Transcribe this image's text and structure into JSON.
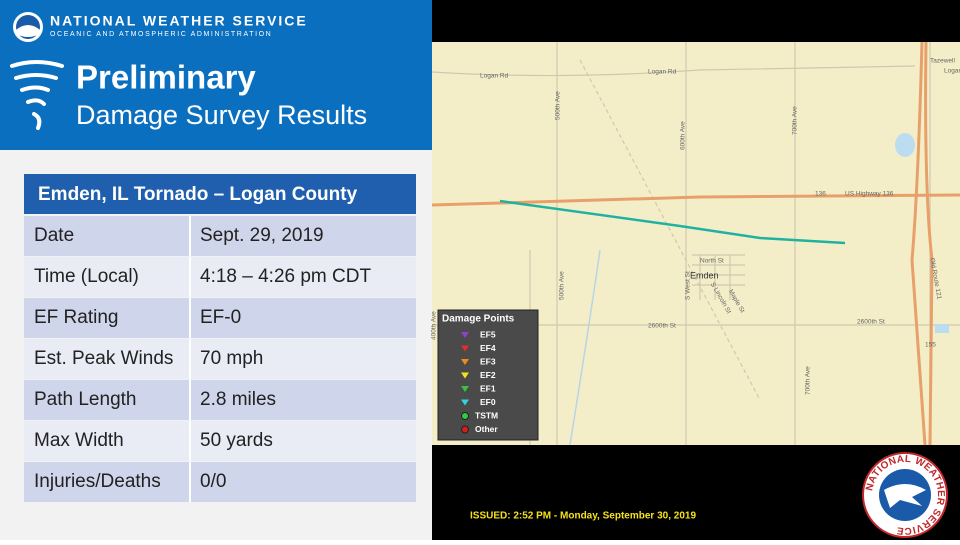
{
  "header": {
    "org": "NATIONAL WEATHER SERVICE",
    "suborg": "OCEANIC AND ATMOSPHERIC ADMINISTRATION",
    "title": "Preliminary",
    "subtitle": "Damage Survey Results"
  },
  "table": {
    "title": "Emden, IL Tornado – Logan County",
    "rows": [
      [
        "Date",
        "Sept. 29, 2019"
      ],
      [
        "Time (Local)",
        "4:18 – 4:26 pm CDT"
      ],
      [
        "EF Rating",
        "EF-0"
      ],
      [
        "Est. Peak Winds",
        "70 mph"
      ],
      [
        "Path Length",
        "2.8 miles"
      ],
      [
        "Max Width",
        "50 yards"
      ],
      [
        "Injuries/Deaths",
        " 0/0"
      ]
    ]
  },
  "map": {
    "labels": [
      "Logan Rd",
      "Logan Rd",
      "500th Ave",
      "600th Ave",
      "700th Ave",
      "US Highway 136",
      "136",
      "North St",
      "Emden",
      "S West St",
      "S Lincoln St",
      "Maple St",
      "2600th St",
      "2600th St",
      "500th Ave",
      "475th Ave",
      "400th Ave",
      "700th Ave",
      "Old Route 121",
      "Tazewell",
      "Logan",
      "155"
    ],
    "legend": {
      "title": "Damage Points",
      "items": [
        {
          "label": "EF5",
          "color": "#8e44c8",
          "shape": "triangle"
        },
        {
          "label": "EF4",
          "color": "#e0302c",
          "shape": "triangle"
        },
        {
          "label": "EF3",
          "color": "#f08a1c",
          "shape": "triangle"
        },
        {
          "label": "EF2",
          "color": "#f5e21a",
          "shape": "triangle"
        },
        {
          "label": "EF1",
          "color": "#3fbf3f",
          "shape": "triangle"
        },
        {
          "label": "EF0",
          "color": "#35d0e0",
          "shape": "triangle"
        },
        {
          "label": "TSTM",
          "color": "#2ecc40",
          "shape": "circle"
        },
        {
          "label": "Other",
          "color": "#d0201c",
          "shape": "circle"
        }
      ]
    },
    "issued": "ISSUED: 2:52 PM - Monday, September 30, 2019"
  },
  "logo": {
    "text": "NATIONAL WEATHER SERVICE"
  }
}
